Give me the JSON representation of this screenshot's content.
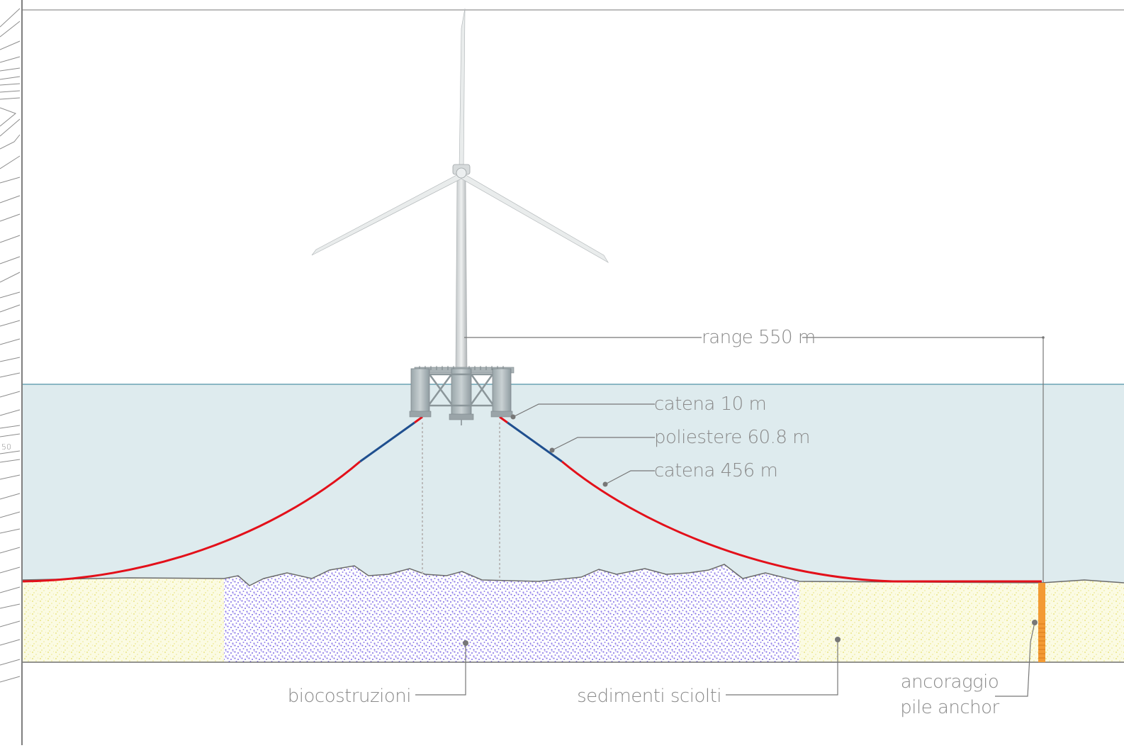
{
  "labels": {
    "range": "range 550 m",
    "catena_short": "catena 10 m",
    "polyester": "poliestere 60.8 m",
    "catena_long": "catena 456 m",
    "biocostruzioni": "biocostruzioni",
    "sedimenti": "sedimenti sciolti",
    "ancoraggio_line1": "ancoraggio",
    "ancoraggio_line2": "pile anchor",
    "contour_mark": "50"
  },
  "colors": {
    "sea": "#deebee",
    "sea_line": "#6aa3b4",
    "sand": "#fbfbe3",
    "sand_dots": "#e9e37c",
    "bio_dots": "#8a77e8",
    "chain": "#e3101a",
    "polyester": "#1f4f8f",
    "anchor": "#f39a34",
    "leader": "#777777",
    "frame": "#555555"
  },
  "icons": [
    "wind-turbine-icon",
    "floating-platform-icon"
  ]
}
